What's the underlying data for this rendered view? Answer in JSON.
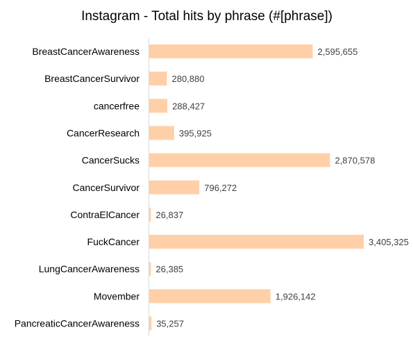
{
  "chart_data": {
    "type": "bar",
    "orientation": "horizontal",
    "title": "Instagram - Total hits by phrase (#[phrase])",
    "xlabel": "",
    "ylabel": "",
    "grid": false,
    "legend": "none",
    "xlim": [
      0,
      3500000
    ],
    "categories": [
      "BreastCancerAwareness",
      "BreastCancerSurvivor",
      "cancerfree",
      "CancerResearch",
      "CancerSucks",
      "CancerSurvivor",
      "ContraElCancer",
      "FuckCancer",
      "LungCancerAwareness",
      "Movember",
      "PancreaticCancerAwareness"
    ],
    "values": [
      2595655,
      280880,
      288427,
      395925,
      2870578,
      796272,
      26837,
      3405325,
      26385,
      1926142,
      35257
    ],
    "data_labels": [
      "2,595,655",
      "280,880",
      "288,427",
      "395,925",
      "2,870,578",
      "796,272",
      "26,837",
      "3,405,325",
      "26,385",
      "1,926,142",
      "35,257"
    ],
    "colors": {
      "bar": "#ffd0a8",
      "axis": "#d9d9d9",
      "title": "#000000",
      "category_text": "#000000",
      "value_text": "#404040"
    }
  }
}
